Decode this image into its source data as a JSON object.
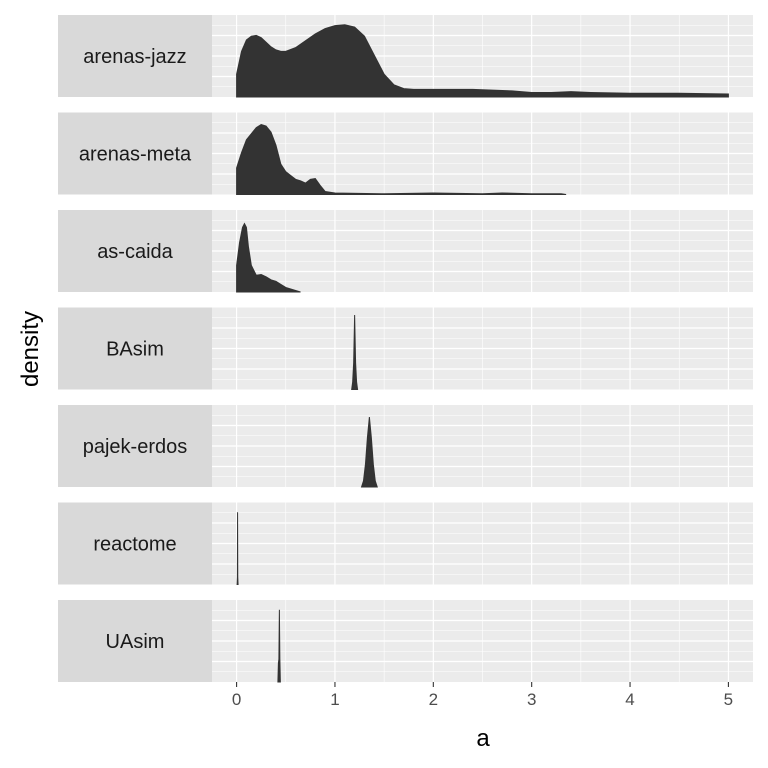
{
  "chart_data": {
    "type": "area",
    "title": "",
    "xlabel": "a",
    "ylabel": "density",
    "xlim": [
      -0.25,
      5.25
    ],
    "x_ticks": [
      "0",
      "1",
      "2",
      "3",
      "4",
      "5"
    ],
    "x_tick_values": [
      0,
      1,
      2,
      3,
      4,
      5
    ],
    "grid": true,
    "legend": "none",
    "facet_layout": "rows",
    "colors": {
      "fill": "#333333",
      "panel_bg": "#ebebeb",
      "grid_major": "#ffffff",
      "strip_bg": "#d9d9d9",
      "strip_text": "#1a1a1a",
      "tick_text": "#4d4d4d"
    },
    "facets": [
      {
        "name": "arenas-jazz",
        "ymax": 1.0,
        "points": [
          [
            0.0,
            0.3
          ],
          [
            0.05,
            0.6
          ],
          [
            0.1,
            0.75
          ],
          [
            0.15,
            0.8
          ],
          [
            0.2,
            0.81
          ],
          [
            0.25,
            0.78
          ],
          [
            0.3,
            0.72
          ],
          [
            0.35,
            0.66
          ],
          [
            0.4,
            0.62
          ],
          [
            0.45,
            0.6
          ],
          [
            0.5,
            0.6
          ],
          [
            0.6,
            0.65
          ],
          [
            0.7,
            0.74
          ],
          [
            0.8,
            0.83
          ],
          [
            0.9,
            0.9
          ],
          [
            1.0,
            0.94
          ],
          [
            1.1,
            0.95
          ],
          [
            1.2,
            0.92
          ],
          [
            1.3,
            0.8
          ],
          [
            1.4,
            0.55
          ],
          [
            1.5,
            0.3
          ],
          [
            1.6,
            0.16
          ],
          [
            1.7,
            0.11
          ],
          [
            1.8,
            0.1
          ],
          [
            2.0,
            0.1
          ],
          [
            2.2,
            0.1
          ],
          [
            2.4,
            0.1
          ],
          [
            2.6,
            0.09
          ],
          [
            2.8,
            0.08
          ],
          [
            3.0,
            0.06
          ],
          [
            3.2,
            0.06
          ],
          [
            3.4,
            0.07
          ],
          [
            3.6,
            0.06
          ],
          [
            4.0,
            0.05
          ],
          [
            4.5,
            0.05
          ],
          [
            5.0,
            0.04
          ]
        ]
      },
      {
        "name": "arenas-meta",
        "ymax": 1.0,
        "points": [
          [
            0.0,
            0.35
          ],
          [
            0.05,
            0.55
          ],
          [
            0.1,
            0.72
          ],
          [
            0.15,
            0.8
          ],
          [
            0.2,
            0.88
          ],
          [
            0.25,
            0.92
          ],
          [
            0.3,
            0.9
          ],
          [
            0.35,
            0.82
          ],
          [
            0.4,
            0.65
          ],
          [
            0.45,
            0.4
          ],
          [
            0.5,
            0.3
          ],
          [
            0.55,
            0.25
          ],
          [
            0.6,
            0.2
          ],
          [
            0.65,
            0.18
          ],
          [
            0.7,
            0.15
          ],
          [
            0.75,
            0.2
          ],
          [
            0.8,
            0.21
          ],
          [
            0.85,
            0.12
          ],
          [
            0.9,
            0.04
          ],
          [
            1.0,
            0.02
          ],
          [
            1.5,
            0.01
          ],
          [
            2.0,
            0.02
          ],
          [
            2.5,
            0.01
          ],
          [
            2.7,
            0.02
          ],
          [
            3.0,
            0.01
          ],
          [
            3.3,
            0.01
          ],
          [
            3.35,
            0.0
          ]
        ]
      },
      {
        "name": "as-caida",
        "ymax": 1.0,
        "points": [
          [
            0.0,
            0.35
          ],
          [
            0.03,
            0.65
          ],
          [
            0.06,
            0.85
          ],
          [
            0.08,
            0.9
          ],
          [
            0.1,
            0.85
          ],
          [
            0.12,
            0.6
          ],
          [
            0.15,
            0.35
          ],
          [
            0.2,
            0.22
          ],
          [
            0.25,
            0.23
          ],
          [
            0.3,
            0.2
          ],
          [
            0.35,
            0.16
          ],
          [
            0.4,
            0.14
          ],
          [
            0.45,
            0.1
          ],
          [
            0.5,
            0.06
          ],
          [
            0.55,
            0.04
          ],
          [
            0.6,
            0.02
          ],
          [
            0.65,
            0.0
          ]
        ]
      },
      {
        "name": "BAsim",
        "ymax": 1.0,
        "points": [
          [
            1.17,
            0.0
          ],
          [
            1.18,
            0.1
          ],
          [
            1.19,
            0.35
          ],
          [
            1.2,
            0.98
          ],
          [
            1.21,
            0.35
          ],
          [
            1.22,
            0.1
          ],
          [
            1.23,
            0.0
          ]
        ]
      },
      {
        "name": "pajek-erdos",
        "ymax": 1.0,
        "points": [
          [
            1.27,
            0.0
          ],
          [
            1.29,
            0.08
          ],
          [
            1.31,
            0.3
          ],
          [
            1.33,
            0.65
          ],
          [
            1.35,
            0.92
          ],
          [
            1.37,
            0.65
          ],
          [
            1.39,
            0.3
          ],
          [
            1.41,
            0.08
          ],
          [
            1.43,
            0.0
          ]
        ]
      },
      {
        "name": "reactome",
        "ymax": 1.0,
        "points": [
          [
            0.005,
            0.0
          ],
          [
            0.008,
            0.1
          ],
          [
            0.01,
            0.95
          ],
          [
            0.012,
            0.1
          ],
          [
            0.015,
            0.0
          ]
        ]
      },
      {
        "name": "UAsim",
        "ymax": 1.0,
        "points": [
          [
            0.42,
            0.0
          ],
          [
            0.425,
            0.25
          ],
          [
            0.43,
            0.3
          ],
          [
            0.435,
            0.95
          ],
          [
            0.44,
            0.3
          ],
          [
            0.445,
            0.0
          ]
        ]
      }
    ]
  }
}
